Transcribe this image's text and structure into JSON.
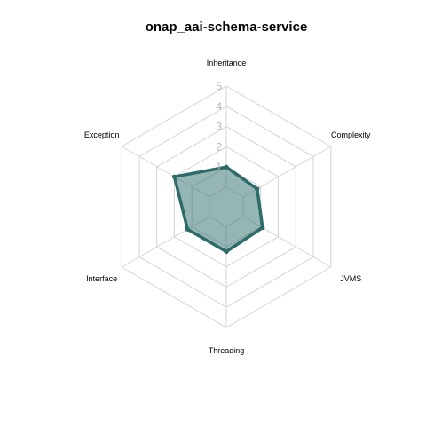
{
  "chart_data": {
    "type": "radar",
    "title": "onap_aai-schema-service",
    "axes": [
      "Inheritance",
      "Complexity",
      "JVMS",
      "Threading",
      "Interface",
      "Exception"
    ],
    "rlim": [
      0,
      5
    ],
    "ticks": [
      "0",
      "1",
      "2",
      "3",
      "4",
      "5"
    ],
    "series": [
      {
        "values": [
          1,
          0.8,
          1.1,
          1.25,
          1.25,
          2.0
        ]
      }
    ],
    "grid": true,
    "legend": "none",
    "colors": {
      "line": "#2d6b6b",
      "fill": "#2d6b6b",
      "fill_opacity": 0.5,
      "grid": "#d4d4d4",
      "tick": "#b4b4b4"
    }
  }
}
